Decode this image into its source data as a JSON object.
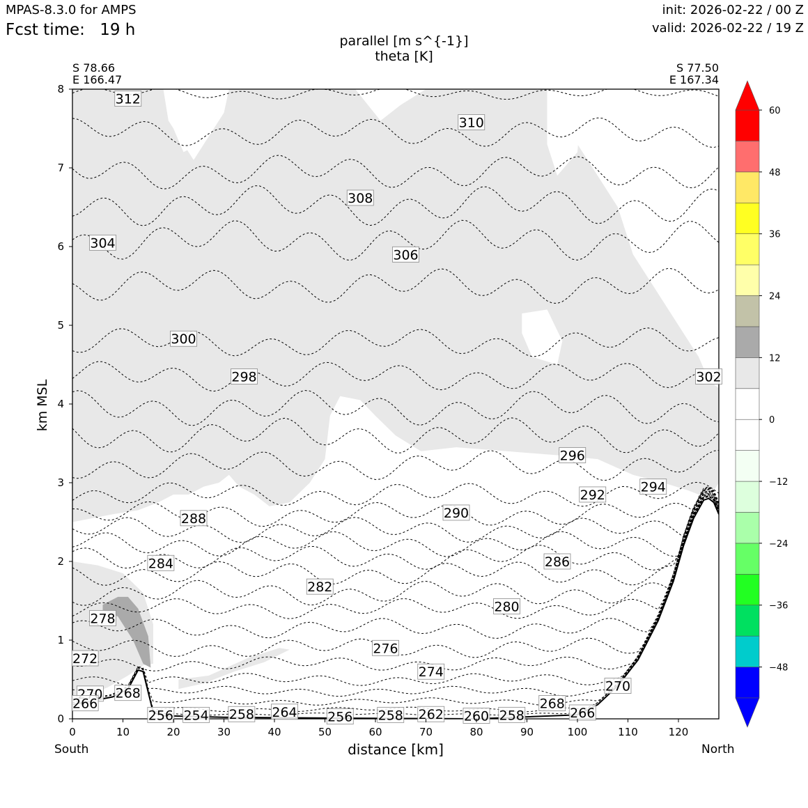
{
  "header": {
    "model": "MPAS-8.3.0 for AMPS",
    "fcst_label": "Fcst time:",
    "fcst_value": "19 h",
    "init": "init: 2026-02-22 / 00 Z",
    "valid": "valid: 2026-02-22 / 19 Z"
  },
  "chart_data": {
    "type": "cross-section contour",
    "title": "parallel [m s^{-1}]",
    "subtitle": "theta [K]",
    "start_point": {
      "lat": "S 78.66",
      "lon": "E 166.47"
    },
    "end_point": {
      "lat": "S 77.50",
      "lon": "E 167.34"
    },
    "xlabel": "distance [km]",
    "ylabel": "km MSL",
    "x_left_label": "South",
    "x_right_label": "North",
    "xlim": [
      0,
      128
    ],
    "ylim": [
      0,
      8
    ],
    "x_ticks": [
      0,
      10,
      20,
      30,
      40,
      50,
      60,
      70,
      80,
      90,
      100,
      110,
      120
    ],
    "y_ticks": [
      0,
      1,
      2,
      3,
      4,
      5,
      6,
      7,
      8
    ],
    "terrain": [
      [
        0,
        0.18
      ],
      [
        8,
        0.28
      ],
      [
        11,
        0.38
      ],
      [
        13,
        0.62
      ],
      [
        14,
        0.6
      ],
      [
        16,
        0.08
      ],
      [
        18,
        0.04
      ],
      [
        30,
        0.02
      ],
      [
        50,
        0.01
      ],
      [
        80,
        0.0
      ],
      [
        100,
        0.05
      ],
      [
        104,
        0.18
      ],
      [
        108,
        0.42
      ],
      [
        112,
        0.75
      ],
      [
        116,
        1.25
      ],
      [
        119,
        1.75
      ],
      [
        121,
        2.2
      ],
      [
        123,
        2.55
      ],
      [
        125,
        2.78
      ],
      [
        126,
        2.8
      ],
      [
        127,
        2.75
      ],
      [
        128,
        2.6
      ]
    ],
    "colorbar": {
      "levels": [
        -54,
        -48,
        -42,
        -36,
        -30,
        -24,
        -18,
        -12,
        -6,
        0,
        6,
        12,
        18,
        24,
        30,
        36,
        42,
        48,
        54,
        60
      ],
      "tick_labels": [
        "60",
        "48",
        "36",
        "24",
        "12",
        "0",
        "−12",
        "−24",
        "−36",
        "−48"
      ],
      "colors": [
        "#0000ff",
        "#00cccc",
        "#00e060",
        "#22ff22",
        "#66ff66",
        "#aaffaa",
        "#ddffdd",
        "#f3fff3",
        "#ffffff",
        "#ffffff",
        "#e8e8e8",
        "#aaaaaa",
        "#c2c2a8",
        "#ffffaa",
        "#ffff66",
        "#ffff22",
        "#ffe866",
        "#ff6e6e",
        "#ff0000"
      ],
      "extend_low_color": "#0000ff",
      "extend_high_color": "#ff0000"
    },
    "theta_labels": [
      {
        "value": "312",
        "x": 11,
        "y": 7.88
      },
      {
        "value": "310",
        "x": 79,
        "y": 7.58
      },
      {
        "value": "308",
        "x": 57,
        "y": 6.62
      },
      {
        "value": "306",
        "x": 66,
        "y": 5.9
      },
      {
        "value": "304",
        "x": 6,
        "y": 6.05
      },
      {
        "value": "302",
        "x": 126,
        "y": 4.35
      },
      {
        "value": "300",
        "x": 22,
        "y": 4.83
      },
      {
        "value": "298",
        "x": 34,
        "y": 4.35
      },
      {
        "value": "296",
        "x": 99,
        "y": 3.35
      },
      {
        "value": "294",
        "x": 115,
        "y": 2.95
      },
      {
        "value": "292",
        "x": 103,
        "y": 2.85
      },
      {
        "value": "290",
        "x": 76,
        "y": 2.62
      },
      {
        "value": "288",
        "x": 24,
        "y": 2.55
      },
      {
        "value": "286",
        "x": 96,
        "y": 2.0
      },
      {
        "value": "284",
        "x": 17.5,
        "y": 1.98
      },
      {
        "value": "282",
        "x": 49,
        "y": 1.68
      },
      {
        "value": "280",
        "x": 86,
        "y": 1.43
      },
      {
        "value": "278",
        "x": 6,
        "y": 1.28
      },
      {
        "value": "276",
        "x": 62,
        "y": 0.9
      },
      {
        "value": "274",
        "x": 71,
        "y": 0.6
      },
      {
        "value": "272",
        "x": 2.5,
        "y": 0.77
      },
      {
        "value": "270",
        "x": 3.5,
        "y": 0.32
      },
      {
        "value": "268",
        "x": 11,
        "y": 0.33
      },
      {
        "value": "266",
        "x": 2.5,
        "y": 0.2
      },
      {
        "value": "256",
        "x": 17.5,
        "y": 0.05
      },
      {
        "value": "254",
        "x": 24.5,
        "y": 0.05
      },
      {
        "value": "258",
        "x": 33.5,
        "y": 0.06
      },
      {
        "value": "264",
        "x": 42,
        "y": 0.09
      },
      {
        "value": "256",
        "x": 53,
        "y": 0.03
      },
      {
        "value": "258",
        "x": 63,
        "y": 0.05
      },
      {
        "value": "262",
        "x": 71,
        "y": 0.06
      },
      {
        "value": "260",
        "x": 80,
        "y": 0.04
      },
      {
        "value": "258",
        "x": 87,
        "y": 0.05
      },
      {
        "value": "268",
        "x": 95,
        "y": 0.2
      },
      {
        "value": "266",
        "x": 101,
        "y": 0.08
      },
      {
        "value": "270",
        "x": 108,
        "y": 0.42
      }
    ],
    "theta_lines": [
      {
        "base": 7.95,
        "amp": 0.05
      },
      {
        "base": 7.45,
        "amp": 0.12
      },
      {
        "base": 6.95,
        "amp": 0.14
      },
      {
        "base": 6.52,
        "amp": 0.16
      },
      {
        "base": 6.08,
        "amp": 0.16
      },
      {
        "base": 5.5,
        "amp": 0.14
      },
      {
        "base": 4.78,
        "amp": 0.12
      },
      {
        "base": 4.35,
        "amp": 0.12
      },
      {
        "base": 3.95,
        "amp": 0.14
      },
      {
        "base": 3.6,
        "amp": 0.14
      },
      {
        "base": 3.22,
        "amp": 0.12
      },
      {
        "base": 2.85,
        "amp": 0.1
      },
      {
        "base": 2.6,
        "amp": 0.1
      },
      {
        "base": 2.4,
        "amp": 0.1
      },
      {
        "base": 2.22,
        "amp": 0.1
      },
      {
        "base": 2.05,
        "amp": 0.1
      },
      {
        "base": 1.85,
        "amp": 0.1
      },
      {
        "base": 1.6,
        "amp": 0.1
      },
      {
        "base": 1.4,
        "amp": 0.08
      },
      {
        "base": 1.15,
        "amp": 0.08
      },
      {
        "base": 0.9,
        "amp": 0.08
      },
      {
        "base": 0.7,
        "amp": 0.06
      },
      {
        "base": 0.5,
        "amp": 0.05
      },
      {
        "base": 0.35,
        "amp": 0.04
      },
      {
        "base": 0.22,
        "amp": 0.03
      },
      {
        "base": 0.12,
        "amp": 0.02
      },
      {
        "base": 0.06,
        "amp": 0.01
      }
    ],
    "shaded_regions": [
      {
        "level": "6-12",
        "poly": [
          [
            0,
            8
          ],
          [
            18,
            8
          ],
          [
            19,
            7.6
          ],
          [
            24,
            7.1
          ],
          [
            30,
            7.7
          ],
          [
            31,
            8
          ],
          [
            56,
            8
          ],
          [
            61,
            7.6
          ],
          [
            65,
            7.8
          ],
          [
            70,
            8
          ],
          [
            94,
            8
          ],
          [
            99,
            7.4
          ],
          [
            103,
            7.0
          ],
          [
            108,
            6.5
          ],
          [
            111,
            5.9
          ],
          [
            115,
            5.5
          ],
          [
            120,
            5.0
          ],
          [
            124,
            4.6
          ],
          [
            126,
            4.3
          ],
          [
            128,
            4.2
          ],
          [
            128,
            3.0
          ],
          [
            126,
            2.8
          ],
          [
            122,
            2.9
          ],
          [
            117,
            3.0
          ],
          [
            111,
            3.1
          ],
          [
            104,
            3.3
          ],
          [
            96,
            3.35
          ],
          [
            86,
            3.4
          ],
          [
            76,
            3.45
          ],
          [
            69,
            3.4
          ],
          [
            64,
            3.6
          ],
          [
            60,
            3.85
          ],
          [
            57,
            4.05
          ],
          [
            53,
            4.1
          ],
          [
            51,
            3.85
          ],
          [
            50,
            3.3
          ],
          [
            47,
            3.0
          ],
          [
            43,
            2.75
          ],
          [
            39,
            2.7
          ],
          [
            36,
            2.85
          ],
          [
            33,
            2.95
          ],
          [
            31,
            3.1
          ],
          [
            29,
            3.0
          ],
          [
            26,
            2.95
          ],
          [
            23,
            2.85
          ],
          [
            20,
            2.85
          ],
          [
            17,
            2.75
          ],
          [
            13,
            2.65
          ],
          [
            8,
            2.6
          ],
          [
            4,
            2.55
          ],
          [
            0,
            2.5
          ]
        ]
      },
      {
        "level": "6-12",
        "poly": [
          [
            0,
            2.0
          ],
          [
            5,
            1.95
          ],
          [
            10,
            1.85
          ],
          [
            14,
            1.6
          ],
          [
            16,
            1.2
          ],
          [
            16,
            0.7
          ],
          [
            14,
            0.68
          ],
          [
            11,
            0.55
          ],
          [
            7,
            0.4
          ],
          [
            3,
            0.3
          ],
          [
            0,
            0.3
          ]
        ]
      },
      {
        "level": "6-12",
        "poly": [
          [
            21,
            0.5
          ],
          [
            27,
            0.55
          ],
          [
            35,
            0.78
          ],
          [
            41,
            0.9
          ],
          [
            43,
            0.88
          ],
          [
            38,
            0.72
          ],
          [
            32,
            0.6
          ],
          [
            26,
            0.45
          ],
          [
            21,
            0.38
          ]
        ]
      },
      {
        "level": "12-18",
        "poly": [
          [
            6,
            1.45
          ],
          [
            9,
            1.55
          ],
          [
            11,
            1.55
          ],
          [
            13,
            1.4
          ],
          [
            15,
            1.05
          ],
          [
            15.5,
            0.65
          ],
          [
            14,
            0.7
          ],
          [
            12,
            1.0
          ],
          [
            9,
            1.3
          ],
          [
            6,
            1.38
          ]
        ]
      }
    ],
    "white_holes": [
      {
        "poly": [
          [
            18,
            8
          ],
          [
            29,
            8
          ],
          [
            28,
            7.55
          ],
          [
            25,
            7.3
          ],
          [
            22,
            7.2
          ],
          [
            20,
            7.5
          ]
        ]
      },
      {
        "poly": [
          [
            57,
            8
          ],
          [
            62,
            8
          ],
          [
            61,
            7.7
          ]
        ]
      },
      {
        "poly": [
          [
            94,
            8
          ],
          [
            101,
            8
          ],
          [
            100,
            7.2
          ],
          [
            96,
            6.9
          ],
          [
            94,
            7.3
          ]
        ]
      },
      {
        "poly": [
          [
            108,
            8
          ],
          [
            112,
            8
          ],
          [
            111,
            7.1
          ],
          [
            109,
            7.3
          ]
        ]
      },
      {
        "poly": [
          [
            89,
            5.15
          ],
          [
            94,
            5.2
          ],
          [
            97,
            4.8
          ],
          [
            96,
            4.5
          ],
          [
            91,
            4.6
          ],
          [
            89,
            4.9
          ]
        ]
      },
      {
        "poly": [
          [
            125,
            5.5
          ],
          [
            128,
            5.5
          ],
          [
            128,
            4.8
          ],
          [
            126,
            5.0
          ]
        ]
      }
    ]
  }
}
